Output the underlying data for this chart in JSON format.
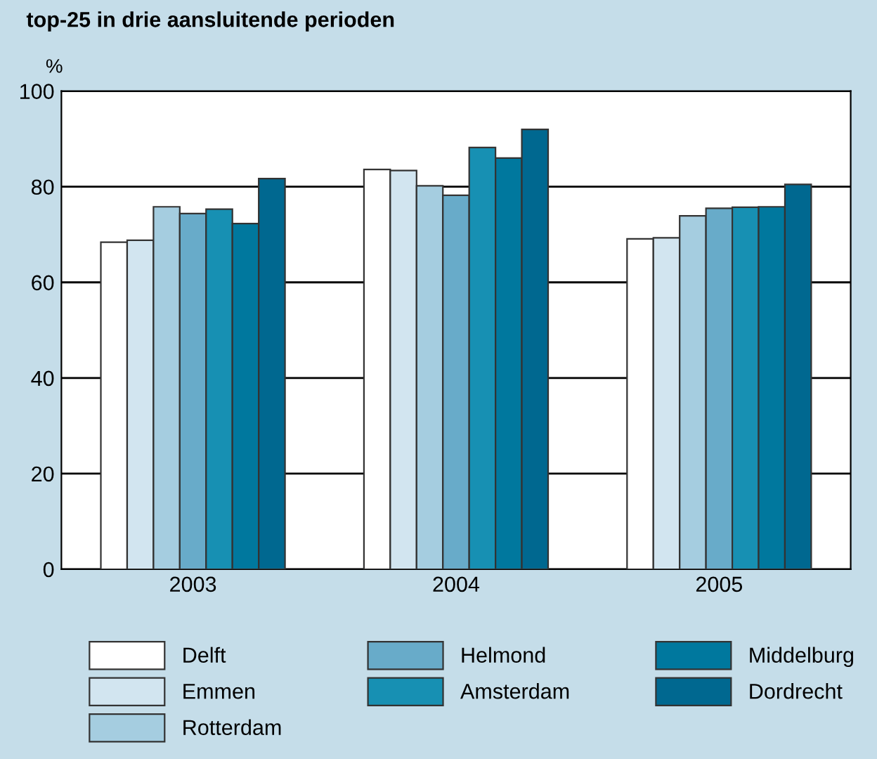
{
  "chart_data": {
    "type": "bar",
    "title": "top-25 in drie aansluitende perioden",
    "ylabel": "%",
    "categories": [
      "2003",
      "2004",
      "2005"
    ],
    "series": [
      {
        "name": "Delft",
        "color": "#ffffff",
        "values": [
          68.4,
          83.6,
          69.1
        ]
      },
      {
        "name": "Emmen",
        "color": "#d2e5f0",
        "values": [
          68.8,
          83.4,
          69.3
        ]
      },
      {
        "name": "Rotterdam",
        "color": "#a5cde0",
        "values": [
          75.8,
          80.2,
          73.9
        ]
      },
      {
        "name": "Helmond",
        "color": "#68abc9",
        "values": [
          74.4,
          78.2,
          75.5
        ]
      },
      {
        "name": "Amsterdam",
        "color": "#1790b3",
        "values": [
          75.3,
          88.2,
          75.7
        ]
      },
      {
        "name": "Middelburg",
        "color": "#00789e",
        "values": [
          72.3,
          86.0,
          75.8
        ]
      },
      {
        "name": "Dordrecht",
        "color": "#006890",
        "values": [
          81.7,
          92.0,
          80.5
        ]
      }
    ],
    "ylim": [
      0,
      100
    ],
    "yticks": [
      0,
      20,
      40,
      60,
      80,
      100
    ],
    "grid": "y",
    "legend": "bottom"
  }
}
